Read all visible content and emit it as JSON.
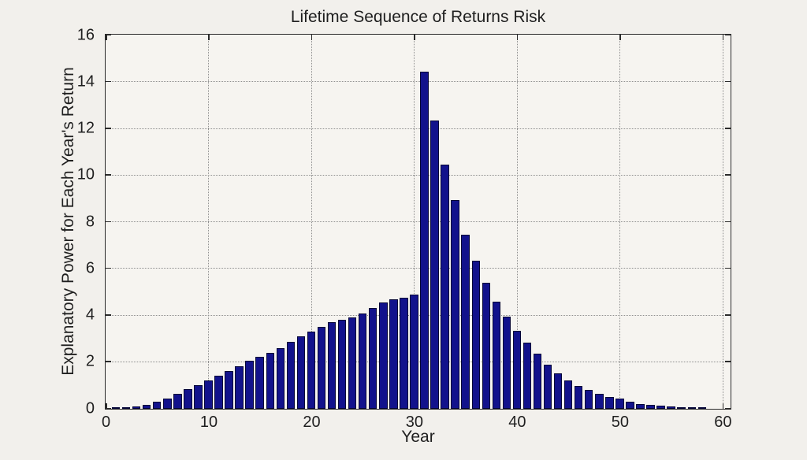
{
  "figure": {
    "background_color": "#f2f0ec",
    "plot_background_color": "#f6f4f0",
    "text_color": "#1f1f1f",
    "gridline_color": "#8f8f8f"
  },
  "chart_data": {
    "type": "bar",
    "title": "Lifetime Sequence of Returns Risk",
    "xlabel": "Year",
    "ylabel": "Explanatory Power for Each Year's Return",
    "grid": true,
    "legend": "none",
    "xlim": [
      0,
      60.7
    ],
    "ylim": [
      0,
      16
    ],
    "x_ticks": [
      0,
      10,
      20,
      30,
      40,
      50,
      60
    ],
    "y_ticks": [
      0,
      2,
      4,
      6,
      8,
      10,
      12,
      14,
      16
    ],
    "bar_color": "#12128c",
    "bar_edge_color": "#050536",
    "bar_width_fraction": 0.8,
    "x": [
      1,
      2,
      3,
      4,
      5,
      6,
      7,
      8,
      9,
      10,
      11,
      12,
      13,
      14,
      15,
      16,
      17,
      18,
      19,
      20,
      21,
      22,
      23,
      24,
      25,
      26,
      27,
      28,
      29,
      30,
      31,
      32,
      33,
      34,
      35,
      36,
      37,
      38,
      39,
      40,
      41,
      42,
      43,
      44,
      45,
      46,
      47,
      48,
      49,
      50,
      51,
      52,
      53,
      54,
      55,
      56,
      57,
      58
    ],
    "values": [
      0.02,
      0.04,
      0.1,
      0.18,
      0.3,
      0.44,
      0.63,
      0.85,
      1.02,
      1.2,
      1.42,
      1.62,
      1.81,
      2.05,
      2.24,
      2.4,
      2.6,
      2.87,
      3.12,
      3.32,
      3.52,
      3.7,
      3.8,
      3.91,
      4.08,
      4.32,
      4.56,
      4.7,
      4.77,
      4.9,
      14.44,
      12.34,
      10.47,
      8.94,
      7.47,
      6.34,
      5.4,
      4.58,
      3.94,
      3.34,
      2.84,
      2.36,
      1.89,
      1.53,
      1.22,
      0.97,
      0.8,
      0.63,
      0.5,
      0.43,
      0.29,
      0.21,
      0.16,
      0.12,
      0.1,
      0.06,
      0.03,
      0.01
    ]
  }
}
